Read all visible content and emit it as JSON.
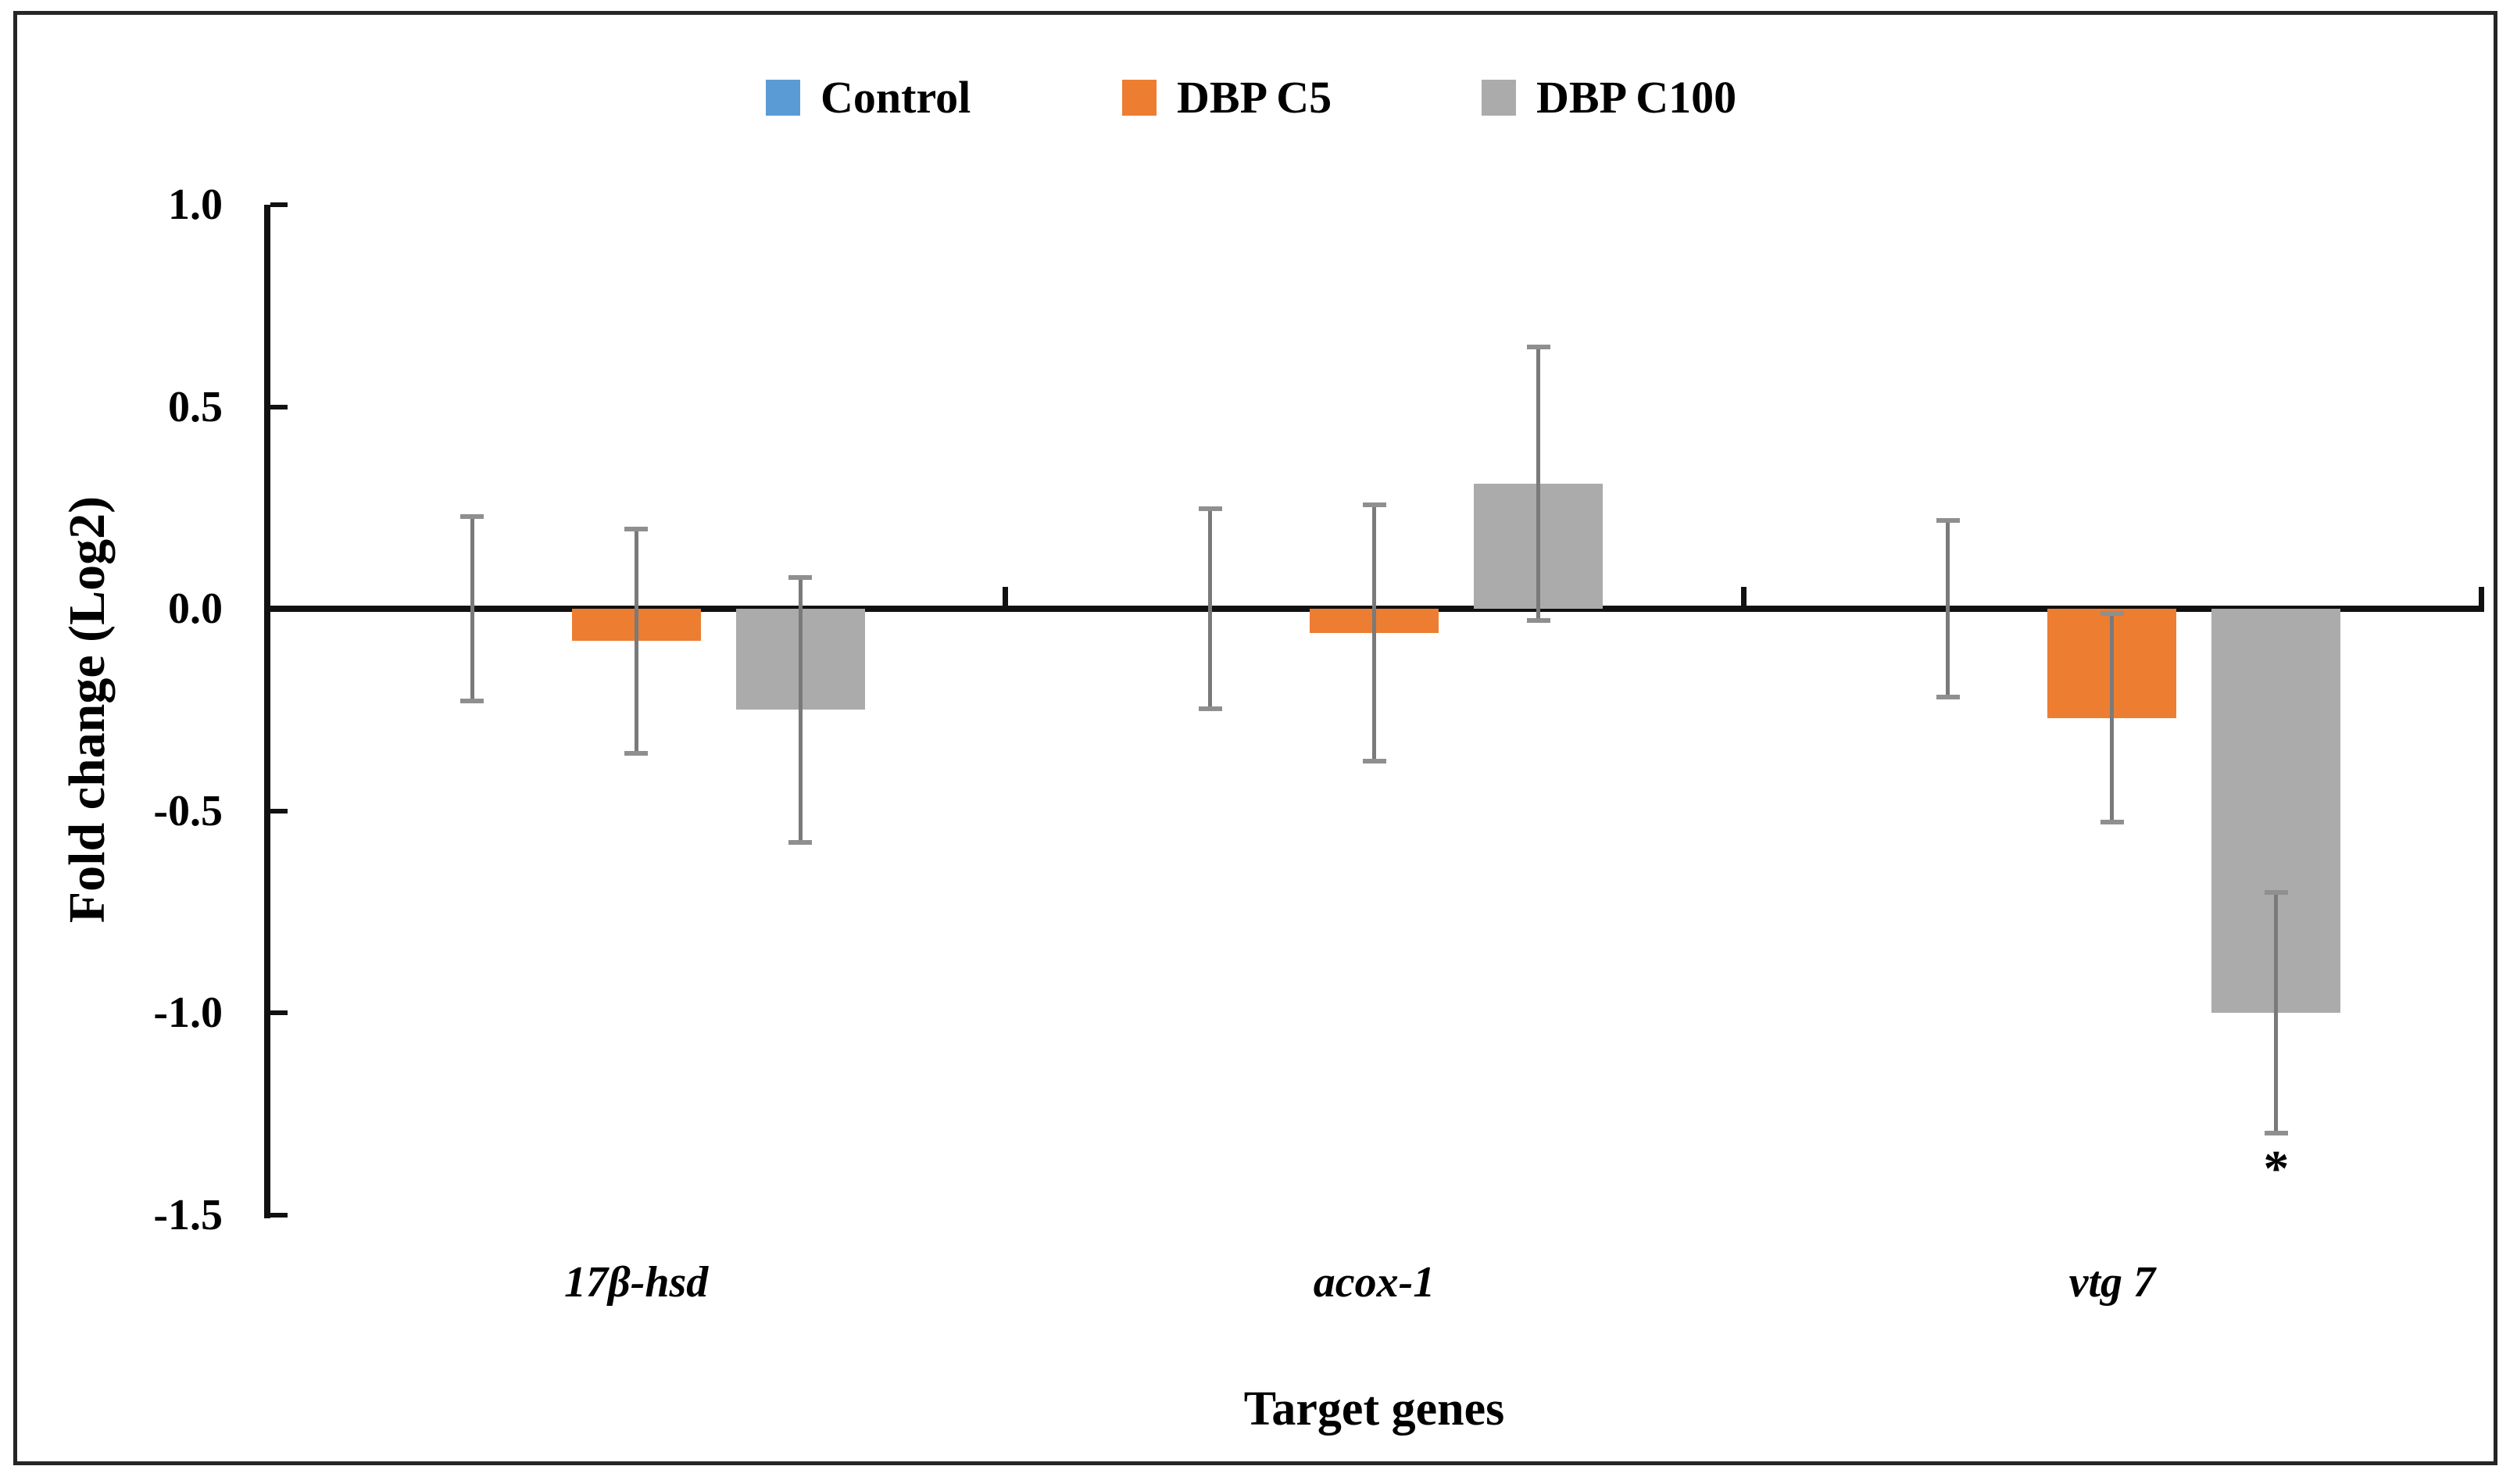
{
  "figure": {
    "background": "#ffffff",
    "border_color": "#262626"
  },
  "chart_data": {
    "type": "bar",
    "title": "",
    "xlabel": "Target genes",
    "ylabel": "Fold change (Log2)",
    "categories": [
      "17β-hsd",
      "acox-1",
      "vtg 7"
    ],
    "series": [
      {
        "name": "Control",
        "color": "#5B9BD5",
        "values": [
          0.0,
          0.0,
          0.0
        ],
        "errors": [
          0.23,
          0.25,
          0.22
        ]
      },
      {
        "name": "DBP C5",
        "color": "#ED7D31",
        "values": [
          -0.08,
          -0.06,
          -0.27
        ],
        "errors": [
          0.28,
          0.32,
          0.26
        ]
      },
      {
        "name": "DBP C100",
        "color": "#ABABAB",
        "values": [
          -0.25,
          0.31,
          -1.0
        ],
        "errors": [
          0.33,
          0.34,
          0.3
        ]
      }
    ],
    "ylim": [
      -1.5,
      1.0
    ],
    "y_ticks": [
      {
        "value": 1.0,
        "label": "1.0"
      },
      {
        "value": 0.5,
        "label": "0.5"
      },
      {
        "value": 0.0,
        "label": "0.0"
      },
      {
        "value": -0.5,
        "label": "-0.5"
      },
      {
        "value": -1.0,
        "label": "-1.0"
      },
      {
        "value": -1.5,
        "label": "-1.5"
      }
    ],
    "grid": false,
    "legend_position": "top",
    "error_bar_color": "#7a7a7a",
    "annotations": [
      {
        "text": "*",
        "category": "vtg 7",
        "series": "DBP C100",
        "placement": "below-error-bar"
      }
    ]
  }
}
